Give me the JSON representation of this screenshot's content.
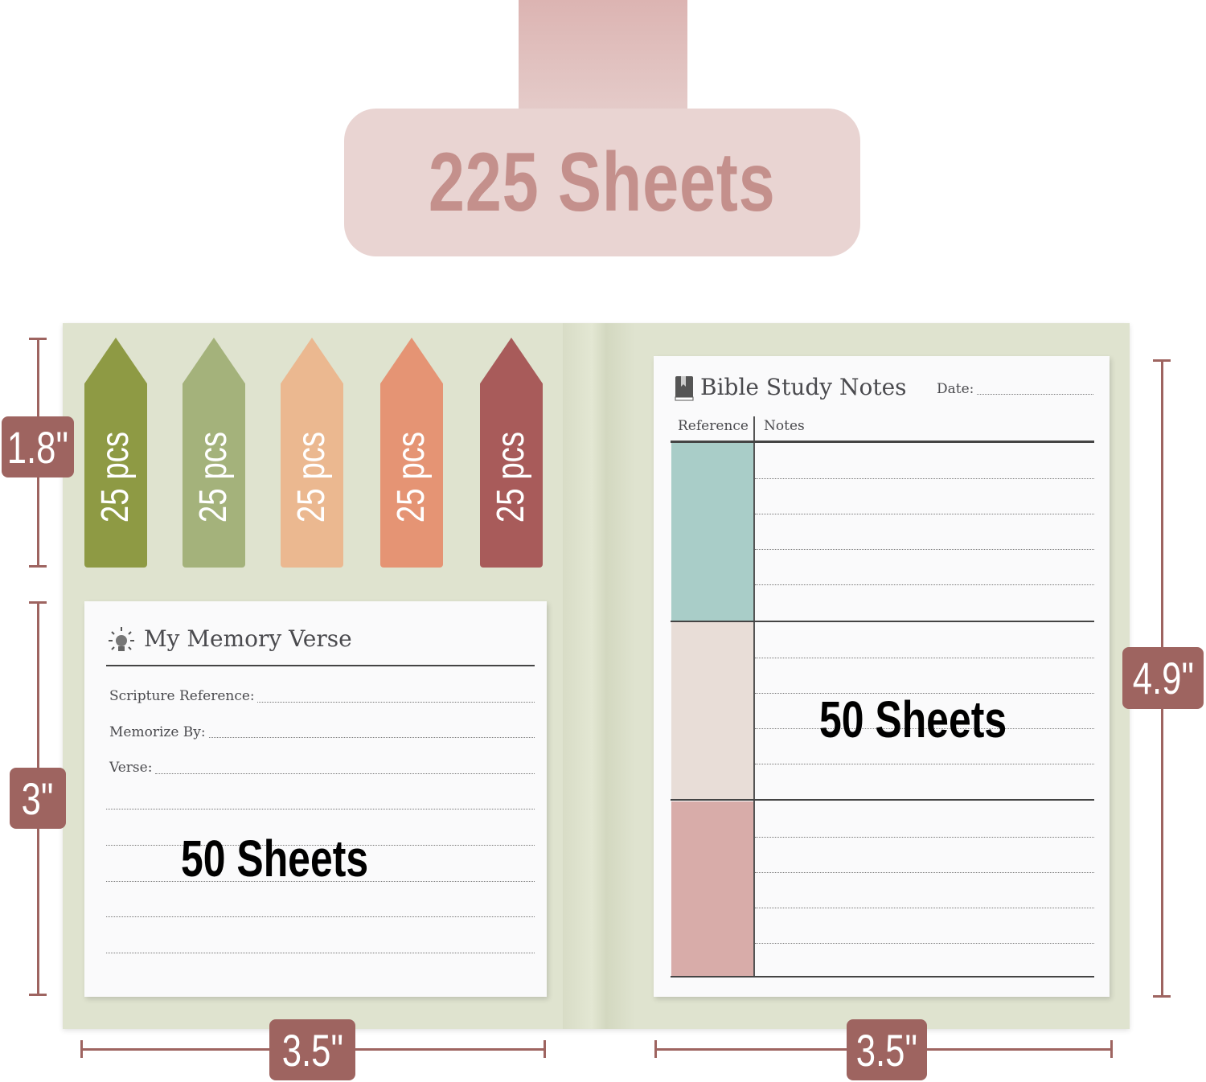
{
  "top_tag": {
    "label": "225 Sheets"
  },
  "flags": [
    {
      "label": "25 pcs",
      "color": "#8e9a44"
    },
    {
      "label": "25 pcs",
      "color": "#a4b27b"
    },
    {
      "label": "25 pcs",
      "color": "#ebb890"
    },
    {
      "label": "25 pcs",
      "color": "#e59474"
    },
    {
      "label": "25 pcs",
      "color": "#a85b5a"
    }
  ],
  "memory_pad": {
    "title": "My Memory Verse",
    "icon": "lightbulb-icon",
    "fields": [
      "Scripture Reference:",
      "Memorize By:",
      "Verse:"
    ],
    "sheets": "50 Sheets"
  },
  "bible_pad": {
    "title": "Bible Study Notes",
    "icon": "book-icon",
    "date_label": "Date:",
    "col_reference": "Reference",
    "col_notes": "Notes",
    "swatch_colors": [
      "#a9cdc8",
      "#e8ddd7",
      "#d8aca9"
    ],
    "sheets": "50 Sheets"
  },
  "dimensions": {
    "flag_height": "1.8\"",
    "memory_height": "3\"",
    "memory_width": "3.5\"",
    "notes_height": "4.9\"",
    "notes_width": "3.5\""
  },
  "colors": {
    "accent": "#9e6460",
    "tag": "#e9d4d2",
    "folder": "#dfe3cf"
  }
}
